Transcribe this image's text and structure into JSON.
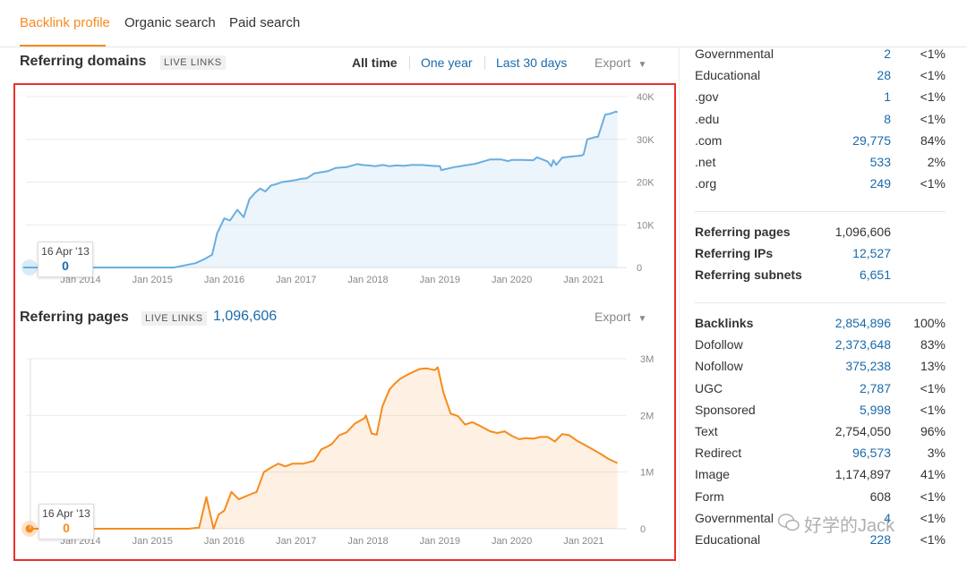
{
  "tabs": [
    {
      "label": "Backlink profile",
      "active": true
    },
    {
      "label": "Organic search"
    },
    {
      "label": "Paid search"
    }
  ],
  "accent_color": "#f68b1e",
  "link_color": "#1a6aab",
  "domains_section": {
    "title": "Referring domains",
    "badge": "LIVE LINKS",
    "range_all": "All time",
    "range_year": "One year",
    "range_30": "Last 30 days",
    "export": "Export",
    "tooltip_date": "16 Apr '13",
    "tooltip_value": "0"
  },
  "pages_section": {
    "title": "Referring pages",
    "badge": "LIVE LINKS",
    "total": "1,096,606",
    "export": "Export",
    "tooltip_date": "16 Apr '13",
    "tooltip_value": "0"
  },
  "chart_data": [
    {
      "type": "area",
      "color": "#6aaee0",
      "x_tick_labels": [
        "Jan 2014",
        "Jan 2015",
        "Jan 2016",
        "Jan 2017",
        "Jan 2018",
        "Jan 2019",
        "Jan 2020",
        "Jan 2021"
      ],
      "y_tick_labels": [
        "40K",
        "30K",
        "20K",
        "10K",
        "0"
      ],
      "ylim": [
        0,
        40000
      ],
      "xlim": [
        2013.29,
        2021.6
      ],
      "grid": true,
      "x": [
        2013.29,
        2015.0,
        2015.3,
        2015.6,
        2015.73,
        2015.83,
        2015.9,
        2016.0,
        2016.08,
        2016.18,
        2016.27,
        2016.35,
        2016.43,
        2016.5,
        2016.57,
        2016.65,
        2016.72,
        2016.8,
        2016.9,
        2017.0,
        2017.08,
        2017.15,
        2017.25,
        2017.35,
        2017.45,
        2017.55,
        2017.7,
        2017.85,
        2017.92,
        2018.0,
        2018.1,
        2018.2,
        2018.3,
        2018.4,
        2018.5,
        2018.6,
        2018.75,
        2018.9,
        2019.0,
        2019.02,
        2019.2,
        2019.35,
        2019.5,
        2019.62,
        2019.7,
        2019.85,
        2019.95,
        2020.0,
        2020.15,
        2020.3,
        2020.35,
        2020.5,
        2020.55,
        2020.58,
        2020.62,
        2020.7,
        2020.8,
        2020.9,
        2020.97,
        2021.0,
        2021.05,
        2021.15,
        2021.2,
        2021.3,
        2021.37,
        2021.45,
        2021.47
      ],
      "y": [
        0,
        0,
        0,
        1000,
        2000,
        3000,
        8000,
        11500,
        11000,
        13500,
        11800,
        16000,
        17500,
        18500,
        17800,
        19200,
        19500,
        20000,
        20200,
        20500,
        20800,
        20900,
        22000,
        22300,
        22600,
        23300,
        23500,
        24200,
        24000,
        23900,
        23700,
        24000,
        23700,
        23900,
        23800,
        24000,
        24000,
        23800,
        23700,
        22800,
        23500,
        23900,
        24300,
        24900,
        25300,
        25300,
        24900,
        25200,
        25200,
        25100,
        25800,
        24800,
        23700,
        25100,
        24000,
        25700,
        25900,
        26100,
        26200,
        26500,
        30000,
        30500,
        30600,
        35800,
        36000,
        36500,
        36300
      ]
    },
    {
      "type": "area",
      "color": "#f68b1e",
      "x_tick_labels": [
        "Jan 2014",
        "Jan 2015",
        "Jan 2016",
        "Jan 2017",
        "Jan 2018",
        "Jan 2019",
        "Jan 2020",
        "Jan 2021"
      ],
      "y_tick_labels": [
        "3M",
        "2M",
        "1M",
        "0"
      ],
      "ylim": [
        0,
        3000000
      ],
      "xlim": [
        2013.29,
        2021.6
      ],
      "grid": true,
      "x": [
        2013.29,
        2015.5,
        2015.65,
        2015.75,
        2015.8,
        2015.85,
        2015.92,
        2016.0,
        2016.1,
        2016.2,
        2016.35,
        2016.45,
        2016.55,
        2016.65,
        2016.75,
        2016.85,
        2016.95,
        2017.1,
        2017.25,
        2017.35,
        2017.45,
        2017.5,
        2017.6,
        2017.7,
        2017.82,
        2017.95,
        2017.97,
        2018.05,
        2018.12,
        2018.2,
        2018.3,
        2018.38,
        2018.45,
        2018.55,
        2018.65,
        2018.72,
        2018.82,
        2018.93,
        2018.97,
        2019.05,
        2019.15,
        2019.25,
        2019.35,
        2019.45,
        2019.55,
        2019.7,
        2019.8,
        2019.9,
        2020.0,
        2020.1,
        2020.2,
        2020.3,
        2020.4,
        2020.5,
        2020.6,
        2020.7,
        2020.8,
        2020.9,
        2021.0,
        2021.1,
        2021.25,
        2021.35,
        2021.45,
        2021.47
      ],
      "y": [
        0,
        0,
        20000,
        560000,
        280000,
        0,
        250000,
        320000,
        650000,
        520000,
        600000,
        650000,
        1000000,
        1080000,
        1150000,
        1100000,
        1150000,
        1150000,
        1200000,
        1400000,
        1460000,
        1500000,
        1650000,
        1700000,
        1860000,
        1950000,
        2000000,
        1680000,
        1660000,
        2160000,
        2460000,
        2570000,
        2650000,
        2720000,
        2780000,
        2820000,
        2830000,
        2800000,
        2850000,
        2400000,
        2030000,
        1990000,
        1840000,
        1880000,
        1820000,
        1720000,
        1690000,
        1720000,
        1640000,
        1580000,
        1600000,
        1590000,
        1620000,
        1620000,
        1540000,
        1670000,
        1650000,
        1560000,
        1490000,
        1420000,
        1310000,
        1230000,
        1170000,
        1160000
      ]
    }
  ],
  "stats_top": [
    {
      "label": "Governmental",
      "value": "2",
      "pct": "<1%"
    },
    {
      "label": "Educational",
      "value": "28",
      "pct": "<1%"
    },
    {
      "label": ".gov",
      "value": "1",
      "pct": "<1%"
    },
    {
      "label": ".edu",
      "value": "8",
      "pct": "<1%"
    },
    {
      "label": ".com",
      "value": "29,775",
      "pct": "84%"
    },
    {
      "label": ".net",
      "value": "533",
      "pct": "2%"
    },
    {
      "label": ".org",
      "value": "249",
      "pct": "<1%"
    }
  ],
  "stats_mid": [
    {
      "label": "Referring pages",
      "value": "1,096,606"
    },
    {
      "label": "Referring IPs",
      "value": "12,527"
    },
    {
      "label": "Referring subnets",
      "value": "6,651"
    }
  ],
  "stats_bottom": [
    {
      "label": "Backlinks",
      "value": "2,854,896",
      "pct": "100%"
    },
    {
      "label": "Dofollow",
      "value": "2,373,648",
      "pct": "83%"
    },
    {
      "label": "Nofollow",
      "value": "375,238",
      "pct": "13%"
    },
    {
      "label": "UGC",
      "value": "2,787",
      "pct": "<1%"
    },
    {
      "label": "Sponsored",
      "value": "5,998",
      "pct": "<1%"
    },
    {
      "label": "Text",
      "value": "2,754,050",
      "pct": "96%"
    },
    {
      "label": "Redirect",
      "value": "96,573",
      "pct": "3%"
    },
    {
      "label": "Image",
      "value": "1,174,897",
      "pct": "41%"
    },
    {
      "label": "Form",
      "value": "608",
      "pct": "<1%"
    },
    {
      "label": "Governmental",
      "value": "4",
      "pct": "<1%"
    },
    {
      "label": "Educational",
      "value": "228",
      "pct": "<1%"
    }
  ],
  "watermark": "好学的Jack"
}
